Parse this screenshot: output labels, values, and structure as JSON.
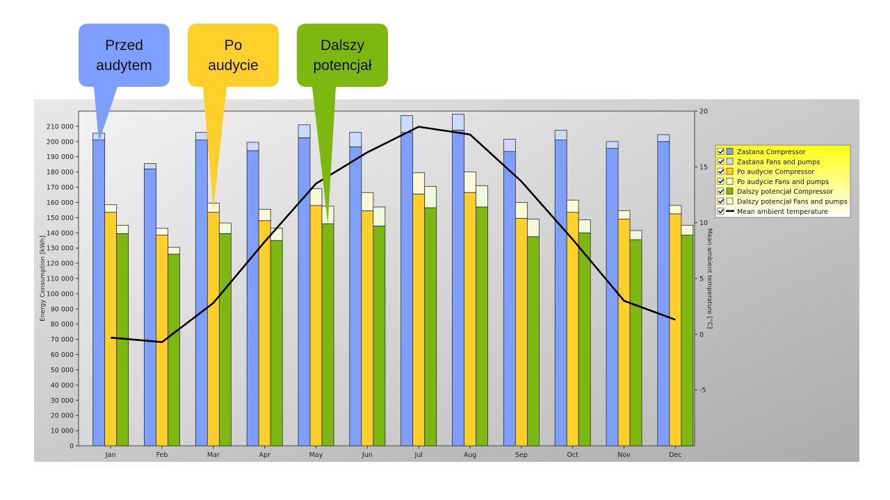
{
  "callouts": [
    {
      "lines": [
        "Przed",
        "audytem"
      ],
      "color": "#7f9fff",
      "tail_month": 0,
      "tail_series": 0
    },
    {
      "lines": [
        "Po",
        "audycie"
      ],
      "color": "#ffd02a",
      "tail_month": 2,
      "tail_series": 1
    },
    {
      "lines": [
        "Dalszy",
        "potencjał"
      ],
      "color": "#7cb80f",
      "tail_month": 4,
      "tail_series": 2
    }
  ],
  "chart_data": {
    "type": "bar",
    "stacked": true,
    "categories": [
      "Jan",
      "Feb",
      "Mar",
      "Apr",
      "May",
      "Jun",
      "Jul",
      "Aug",
      "Sep",
      "Oct",
      "Nov",
      "Dec"
    ],
    "ylabel": "Energy Consumption [kWh]",
    "y2label": "Mean ambient temperature [°C]",
    "ylim": [
      0,
      220000
    ],
    "yticks": [
      0,
      10000,
      20000,
      30000,
      40000,
      50000,
      60000,
      70000,
      80000,
      90000,
      100000,
      110000,
      120000,
      130000,
      140000,
      150000,
      160000,
      170000,
      180000,
      190000,
      200000,
      210000
    ],
    "ytick_labels": [
      "0",
      "10 000",
      "20 000",
      "30 000",
      "40 000",
      "50 000",
      "60 000",
      "70 000",
      "80 000",
      "90 000",
      "100 000",
      "110 000",
      "120 000",
      "130 000",
      "140 000",
      "150 000",
      "160 000",
      "170 000",
      "180 000",
      "190 000",
      "200 000",
      "210 000"
    ],
    "y2lim": [
      -10,
      20
    ],
    "y2ticks": [
      -5,
      0,
      5,
      10,
      15,
      20
    ],
    "y2tick_labels": [
      "-5",
      "0",
      "5",
      "10",
      "15",
      "20"
    ],
    "grid": false,
    "legend_position": "right",
    "groups": [
      {
        "name": "Zastana",
        "compressor": {
          "name": "Zastana Compressor",
          "color": "#7f9fff",
          "values": [
            201000,
            182000,
            201000,
            194000,
            202500,
            196500,
            206000,
            207500,
            193500,
            201000,
            195500,
            200000
          ]
        },
        "fans": {
          "name": "Zastana Fans and pumps",
          "color": "#ccd9ff",
          "values": [
            4500,
            3500,
            5000,
            5500,
            8500,
            9500,
            11000,
            10500,
            8000,
            6500,
            4500,
            4500
          ]
        }
      },
      {
        "name": "Po audycie",
        "compressor": {
          "name": "Po audycie Compressor",
          "color": "#ffd02a",
          "values": [
            153500,
            138500,
            153500,
            148000,
            158000,
            154500,
            165500,
            166500,
            149500,
            153500,
            149000,
            152500
          ]
        },
        "fans": {
          "name": "Po audycie Fans and pumps",
          "color": "#fff8d6",
          "values": [
            5000,
            4500,
            6000,
            7500,
            11000,
            12000,
            14000,
            13500,
            10500,
            8000,
            5500,
            5500
          ]
        }
      },
      {
        "name": "Dalszy potencjał",
        "compressor": {
          "name": "Dalszy potencjał Compressor",
          "color": "#7cb80f",
          "values": [
            139500,
            126000,
            139500,
            135000,
            146000,
            144500,
            156500,
            157000,
            137500,
            140000,
            135500,
            138500
          ]
        },
        "fans": {
          "name": "Dalszy potencjał Fans and pumps",
          "color": "#eefad9",
          "values": [
            5500,
            4500,
            7000,
            8000,
            11500,
            12500,
            14000,
            14000,
            11500,
            8500,
            6000,
            6500
          ]
        }
      }
    ],
    "line_series": {
      "name": "Mean ambient temperature",
      "color": "#000000",
      "values": [
        -0.3,
        -0.7,
        2.8,
        8.3,
        13.5,
        16.3,
        18.6,
        17.9,
        13.7,
        8.5,
        3.0,
        1.3
      ]
    }
  }
}
